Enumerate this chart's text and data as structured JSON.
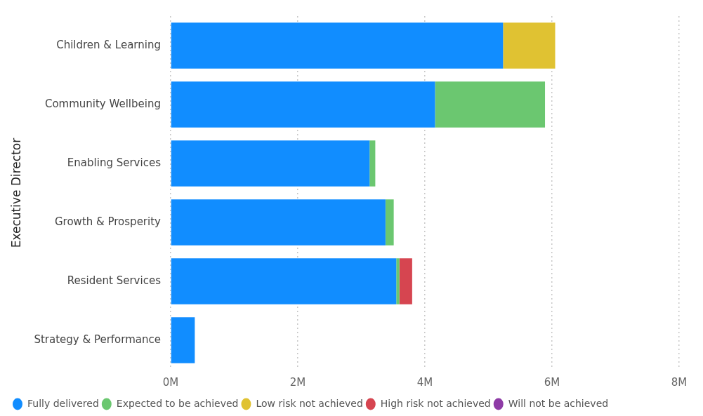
{
  "chart_data": {
    "type": "bar",
    "orientation": "horizontal",
    "stacked": true,
    "ylabel": "Executive Director",
    "categories": [
      "Children & Learning",
      "Community Wellbeing",
      "Enabling Services",
      "Growth & Prosperity",
      "Resident Services",
      "Strategy & Performance"
    ],
    "series": [
      {
        "name": "Fully delivered",
        "color": "#118dff",
        "values": [
          5.23,
          4.16,
          3.13,
          3.38,
          3.55,
          0.38
        ]
      },
      {
        "name": "Expected to be achieved",
        "color": "#6bc770",
        "values": [
          null,
          1.73,
          0.09,
          0.13,
          0.05,
          null
        ]
      },
      {
        "name": "Low risk not achieved",
        "color": "#e0c232",
        "values": [
          0.82,
          null,
          null,
          null,
          null,
          null
        ]
      },
      {
        "name": "High risk not achieved",
        "color": "#d64550",
        "values": [
          null,
          null,
          null,
          null,
          0.2,
          null
        ]
      },
      {
        "name": "Will not be achieved",
        "color": "#8e3ba6",
        "values": [
          null,
          null,
          null,
          null,
          null,
          null
        ]
      }
    ],
    "xlim": [
      0,
      8
    ],
    "xticks": [
      {
        "value": 0,
        "label": "0M"
      },
      {
        "value": 2,
        "label": "2M"
      },
      {
        "value": 4,
        "label": "4M"
      },
      {
        "value": 6,
        "label": "6M"
      },
      {
        "value": 8,
        "label": "8M"
      }
    ],
    "grid": "x",
    "legend": "bottom left",
    "marker": "circle"
  }
}
